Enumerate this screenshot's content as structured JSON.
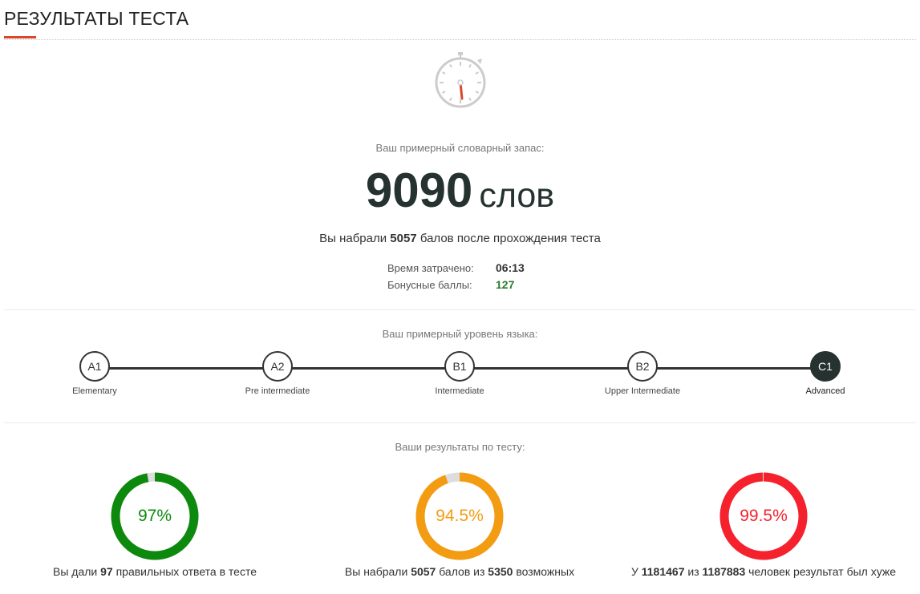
{
  "header": {
    "title": "РЕЗУЛЬТАТЫ ТЕСТА"
  },
  "vocab": {
    "label": "Ваш примерный словарный запас:",
    "number": "9090",
    "unit": "слов",
    "score_pre": "Вы набрали ",
    "score_value": "5057",
    "score_post": " балов после прохождения теста"
  },
  "stats": {
    "time_label": "Время затрачено:",
    "time_value": "06:13",
    "bonus_label": "Бонусные баллы:",
    "bonus_value": "127"
  },
  "levels": {
    "label": "Ваш примерный уровень языка:",
    "items": [
      {
        "code": "A1",
        "name": "Elementary"
      },
      {
        "code": "A2",
        "name": "Pre intermediate"
      },
      {
        "code": "B1",
        "name": "Intermediate"
      },
      {
        "code": "B2",
        "name": "Upper Intermediate"
      },
      {
        "code": "C1",
        "name": "Advanced"
      }
    ],
    "active_index": 4
  },
  "results": {
    "label": "Ваши результаты по тесту:",
    "rings": [
      {
        "value_text": "97%",
        "fraction": 0.97,
        "color": "#0d8a0d",
        "caption_pre": "Вы дали ",
        "caption_b1": "97",
        "caption_mid": " правильных ответа в тесте",
        "caption_b2": "",
        "caption_post": ""
      },
      {
        "value_text": "94.5%",
        "fraction": 0.945,
        "color": "#f39c12",
        "caption_pre": "Вы набрали ",
        "caption_b1": "5057",
        "caption_mid": " балов из ",
        "caption_b2": "5350",
        "caption_post": " возможных"
      },
      {
        "value_text": "99.5%",
        "fraction": 0.995,
        "color": "#f5222d",
        "caption_pre": "У ",
        "caption_b1": "1181467",
        "caption_mid": " из ",
        "caption_b2": "1187883",
        "caption_post": " человек результат был хуже"
      }
    ]
  },
  "colors": {
    "accent": "#d9482b",
    "dark": "#253230",
    "ring_track": "#dddddd",
    "bonus": "#2a7a2a"
  },
  "icons": {
    "stopwatch": "stopwatch-icon"
  }
}
